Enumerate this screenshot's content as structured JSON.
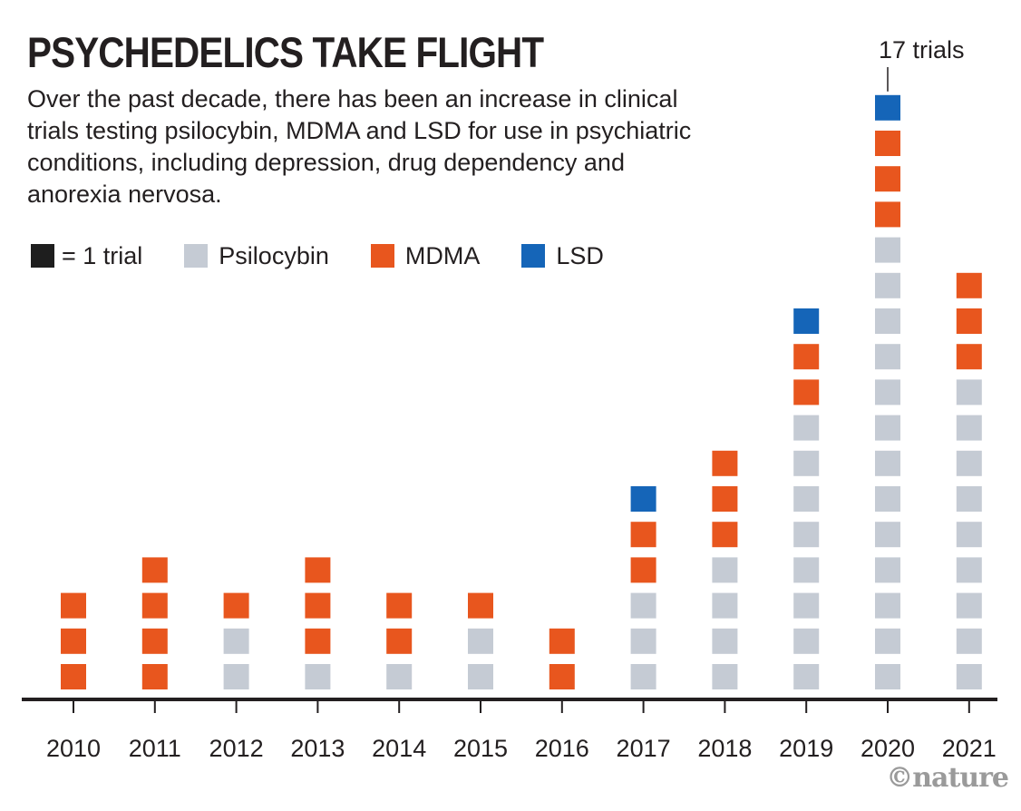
{
  "header": {
    "title": "PSYCHEDELICS TAKE FLIGHT",
    "subtitle": "Over the past decade, there has been an increase in clinical trials testing psilocybin, MDMA and LSD for use in psychiatric conditions, including depression, drug dependency and anorexia nervosa."
  },
  "legend": {
    "unit": "= 1 trial",
    "psilocybin": "Psilocybin",
    "mdma": "MDMA",
    "lsd": "LSD"
  },
  "annotation": "17 trials",
  "credit": "©nature",
  "colors": {
    "unit": "#1e1e1e",
    "psilocybin": "#c5cbd4",
    "mdma": "#e8561e",
    "lsd": "#1565b8",
    "axis": "#231f20"
  },
  "chart_data": {
    "type": "bar",
    "stacked": true,
    "unit": "1 square = 1 trial",
    "categories": [
      "2010",
      "2011",
      "2012",
      "2013",
      "2014",
      "2015",
      "2016",
      "2017",
      "2018",
      "2019",
      "2020",
      "2021"
    ],
    "series": [
      {
        "name": "Psilocybin",
        "values": [
          0,
          0,
          2,
          1,
          1,
          2,
          0,
          3,
          4,
          8,
          13,
          9
        ]
      },
      {
        "name": "MDMA",
        "values": [
          3,
          4,
          1,
          3,
          2,
          1,
          2,
          2,
          3,
          2,
          3,
          3
        ]
      },
      {
        "name": "LSD",
        "values": [
          0,
          0,
          0,
          0,
          0,
          0,
          0,
          1,
          0,
          1,
          1,
          0
        ]
      }
    ],
    "ylim": [
      0,
      17
    ],
    "grid": false
  }
}
